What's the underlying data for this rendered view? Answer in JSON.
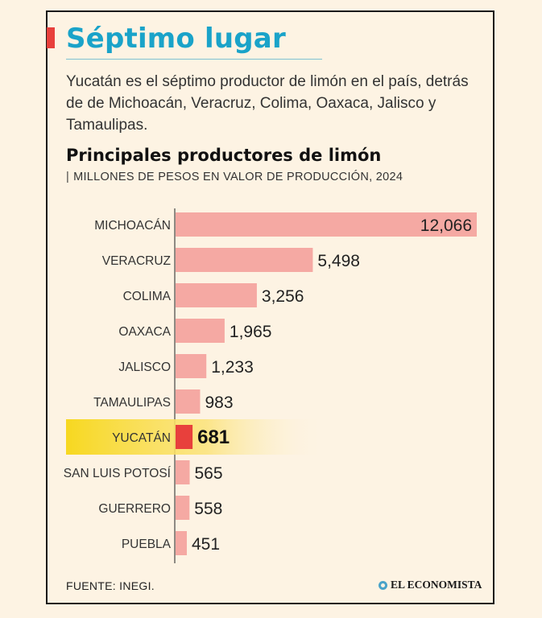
{
  "header": {
    "title": "Séptimo lugar",
    "intro": "Yucatán es el séptimo productor de limón en el país, detrás de de Michoacán, Veracruz, Colima, Oaxaca, Jalisco y Tamaulipas.",
    "accent_color": "#e8403c",
    "title_color": "#1aa3c9"
  },
  "chart_data": {
    "type": "bar",
    "orientation": "horizontal",
    "title": "Principales productores de limón",
    "subtitle": "MILLONES DE PESOS EN VALOR DE PRODUCCIÓN, 2024",
    "categories": [
      "MICHOACÁN",
      "VERACRUZ",
      "COLIMA",
      "OAXACA",
      "JALISCO",
      "TAMAULIPAS",
      "YUCATÁN",
      "SAN LUIS POTOSÍ",
      "GUERRERO",
      "PUEBLA"
    ],
    "values": [
      12066,
      5498,
      3256,
      1965,
      1233,
      983,
      681,
      565,
      558,
      451
    ],
    "value_labels": [
      "12,066",
      "5,498",
      "3,256",
      "1,965",
      "1,233",
      "983",
      "681",
      "565",
      "558",
      "451"
    ],
    "highlight": "YUCATÁN",
    "bar_color": "#f5a9a3",
    "highlight_bar_color": "#e8403c",
    "highlight_band_color": "#f7d820",
    "xlim": [
      0,
      12066
    ],
    "grid": false,
    "legend": "none"
  },
  "footer": {
    "source": "FUENTE: INEGI.",
    "brand": "EL ECONOMISTA",
    "brand_icon": "el-economista-logo-icon"
  }
}
